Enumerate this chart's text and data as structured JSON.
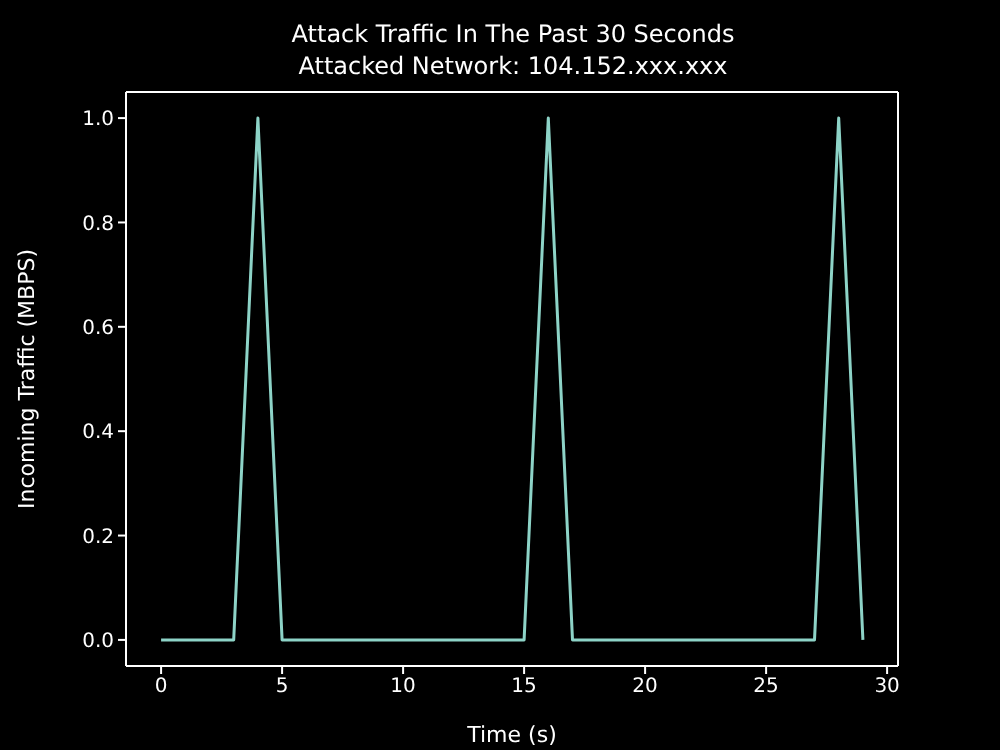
{
  "chart_data": {
    "type": "line",
    "title": "Attack Traffic In The Past 30 Seconds",
    "subtitle": "Attacked Network: 104.152.xxx.xxx",
    "xlabel": "Time (s)",
    "ylabel": "Incoming Traffic (MBPS)",
    "x": [
      0,
      1,
      2,
      3,
      4,
      5,
      6,
      7,
      8,
      9,
      10,
      11,
      12,
      13,
      14,
      15,
      16,
      17,
      18,
      19,
      20,
      21,
      22,
      23,
      24,
      25,
      26,
      27,
      28,
      29
    ],
    "series": [
      {
        "color": "#8dd3c7",
        "values": [
          0,
          0,
          0,
          0,
          1,
          0,
          0,
          0,
          0,
          0,
          0,
          0,
          0,
          0,
          0,
          0,
          1,
          0,
          0,
          0,
          0,
          0,
          0,
          0,
          0,
          0,
          0,
          0,
          1,
          0
        ]
      }
    ],
    "xlim": [
      -1.45,
      30.45
    ],
    "xticks": [
      0,
      5,
      10,
      15,
      20,
      25,
      30
    ],
    "ylim": [
      -0.05,
      1.05
    ],
    "yticks": [
      {
        "value": 0,
        "label": "0.0"
      },
      0.2,
      0.4,
      0.6,
      0.8,
      {
        "value": 1,
        "label": "1.0"
      }
    ],
    "grid": false,
    "legend": false,
    "marker": "none",
    "line_style": "solid"
  }
}
